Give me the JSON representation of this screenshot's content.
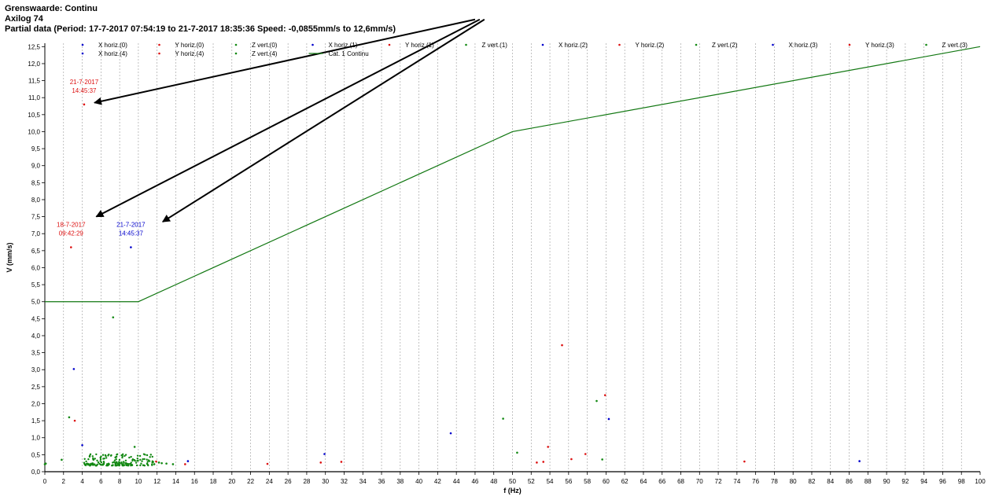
{
  "header": {
    "line1": "Grenswaarde: Continu",
    "line2": "Axilog 74",
    "line3": "Partial data (Period: 17-7-2017 07:54:19 to 21-7-2017 18:35:36 Speed: -0,0855mm/s to 12,6mm/s)"
  },
  "colors": {
    "x": "#0000cc",
    "y": "#dd1111",
    "z": "#118811",
    "limit": "#117711",
    "arrow": "#000000"
  },
  "chart_data": {
    "type": "scatter",
    "xlabel": "f (Hz)",
    "ylabel": "V (mm/s)",
    "xlim": [
      0,
      100
    ],
    "ylim": [
      0,
      12.6
    ],
    "x_ticks": [
      "0",
      "2",
      "4",
      "6",
      "8",
      "10",
      "12",
      "14",
      "16",
      "18",
      "20",
      "22",
      "24",
      "26",
      "28",
      "30",
      "32",
      "34",
      "36",
      "38",
      "40",
      "42",
      "44",
      "46",
      "48",
      "50",
      "52",
      "54",
      "56",
      "58",
      "60",
      "62",
      "64",
      "66",
      "68",
      "70",
      "72",
      "74",
      "76",
      "78",
      "80",
      "82",
      "84",
      "86",
      "88",
      "90",
      "92",
      "94",
      "96",
      "98",
      "100"
    ],
    "y_ticks": [
      "0,0",
      "0,5",
      "1,0",
      "1,5",
      "2,0",
      "2,5",
      "3,0",
      "3,5",
      "4,0",
      "4,5",
      "5,0",
      "5,5",
      "6,0",
      "6,5",
      "7,0",
      "7,5",
      "8,0",
      "8,5",
      "9,0",
      "9,5",
      "10,0",
      "10,5",
      "11,0",
      "11,5",
      "12,0",
      "12,5"
    ],
    "grid": "vertical dashed",
    "legend": {
      "placement": "top",
      "entries": [
        {
          "label": "X horiz.(0)",
          "kind": "x"
        },
        {
          "label": "Y horiz.(0)",
          "kind": "y"
        },
        {
          "label": "Z vert.(0)",
          "kind": "z"
        },
        {
          "label": "X horiz.(1)",
          "kind": "x"
        },
        {
          "label": "Y horiz.(1)",
          "kind": "y"
        },
        {
          "label": "Z vert.(1)",
          "kind": "z"
        },
        {
          "label": "X horiz.(2)",
          "kind": "x"
        },
        {
          "label": "Y horiz.(2)",
          "kind": "y"
        },
        {
          "label": "Z vert.(2)",
          "kind": "z"
        },
        {
          "label": "X horiz.(3)",
          "kind": "x"
        },
        {
          "label": "Y horiz.(3)",
          "kind": "y"
        },
        {
          "label": "Z vert.(3)",
          "kind": "z"
        },
        {
          "label": "X horiz.(4)",
          "kind": "x"
        },
        {
          "label": "Y horiz.(4)",
          "kind": "y"
        },
        {
          "label": "Z vert.(4)",
          "kind": "z"
        },
        {
          "label": "Cat. 1 Continu",
          "kind": "line"
        }
      ]
    },
    "limit_line": {
      "name": "Cat. 1 Continu",
      "points": [
        [
          0,
          5.0
        ],
        [
          10,
          5.0
        ],
        [
          50,
          10.0
        ],
        [
          100,
          12.5
        ]
      ]
    },
    "series": [
      {
        "kind": "x",
        "points": [
          [
            3.1,
            3.02
          ],
          [
            4.0,
            0.78
          ],
          [
            15.3,
            0.31
          ],
          [
            29.9,
            0.52
          ],
          [
            43.4,
            1.13
          ],
          [
            60.3,
            1.55
          ],
          [
            87.1,
            0.31
          ],
          [
            9.2,
            6.6
          ]
        ]
      },
      {
        "kind": "y",
        "points": [
          [
            3.2,
            1.5
          ],
          [
            11.9,
            0.3
          ],
          [
            15.0,
            0.22
          ],
          [
            23.8,
            0.23
          ],
          [
            29.5,
            0.27
          ],
          [
            31.7,
            0.29
          ],
          [
            52.6,
            0.27
          ],
          [
            53.3,
            0.29
          ],
          [
            53.8,
            0.73
          ],
          [
            55.3,
            3.72
          ],
          [
            56.3,
            0.37
          ],
          [
            57.8,
            0.52
          ],
          [
            59.9,
            2.25
          ],
          [
            74.8,
            0.3
          ],
          [
            4.2,
            10.8
          ],
          [
            2.8,
            6.6
          ]
        ]
      },
      {
        "kind": "z",
        "points": [
          [
            0.0,
            0.22
          ],
          [
            0.1,
            0.24
          ],
          [
            1.8,
            0.35
          ],
          [
            2.6,
            1.6
          ],
          [
            7.3,
            4.54
          ],
          [
            9.6,
            0.73
          ],
          [
            49.0,
            1.56
          ],
          [
            50.5,
            0.56
          ],
          [
            59.0,
            2.08
          ],
          [
            59.6,
            0.36
          ],
          [
            13.7,
            0.22
          ],
          [
            13.0,
            0.24
          ],
          [
            12.5,
            0.25
          ],
          [
            12.2,
            0.27
          ],
          [
            11.7,
            0.22
          ]
        ]
      }
    ],
    "z_cluster": {
      "xrange": [
        4.2,
        11.8
      ],
      "yrange": [
        0.18,
        0.52
      ],
      "count": 190
    },
    "annotations": [
      {
        "date": "21-7-2017",
        "time": "14:45:37",
        "x": 4.2,
        "y": 10.8,
        "kind": "y"
      },
      {
        "date": "18-7-2017",
        "time": "09:42:29",
        "x": 2.8,
        "y": 6.6,
        "kind": "y"
      },
      {
        "date": "21-7-2017",
        "time": "14:45:37",
        "x": 9.2,
        "y": 6.6,
        "kind": "x"
      }
    ],
    "arrows": [
      {
        "from": [
          46.0,
          13.3
        ],
        "to": [
          5.3,
          10.85
        ]
      },
      {
        "from": [
          46.5,
          13.3
        ],
        "to": [
          5.5,
          7.5
        ]
      },
      {
        "from": [
          47.0,
          13.3
        ],
        "to": [
          12.6,
          7.35
        ]
      }
    ]
  }
}
